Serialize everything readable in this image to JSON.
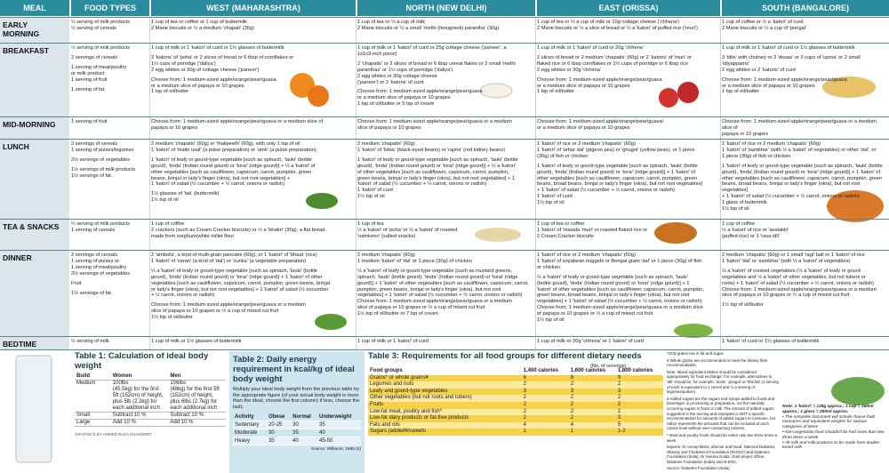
{
  "header": {
    "meal": "MEAL",
    "food_types": "FOOD TYPES",
    "regions": [
      "WEST (MAHARASHTRA)",
      "NORTH (NEW DELHI)",
      "EAST (ORISSA)",
      "SOUTH (BANGALORE)"
    ]
  },
  "rows": [
    {
      "meal": "EARLY\nMORNING",
      "food": [
        "¼ serving of milk products\n½ serving of cereals"
      ],
      "west": [
        "1 cup of tea or coffee or 1 cup of buttermilk\n2 Marie biscuits or ½ a medium 'chapati' (35g)"
      ],
      "north": [
        "1 cup of tea or ½ a cup of milk\n2 Marie biscuits or ½ a small 'methi (fenugreek) parantha' (30g)"
      ],
      "east": [
        "1 cup of tea or ½ a cup of milk or 10g cottage cheese ('chhena')\n2 Marie biscuits or ½ a slice of bread or ½ a 'katori' of puffed rice ('muri')"
      ],
      "south": [
        "1 cup of coffee or ½ a 'katori' of curd\n2 Marie biscuits or ½ a cup of 'pongal'"
      ]
    },
    {
      "meal": "BREAKFAST",
      "food": [
        "½ serving of milk products",
        "2 servings of cereals",
        "1 serving of meat/poultry\nor milk product\n1 serving of fruit",
        "1 serving of fat"
      ],
      "west": [
        "1 cup of milk or 1 'katori' of curd or 1½ glasses of buttermilk",
        "2 'katoris' of 'poha' or 2 slices of bread or 6 tbsp of cornflakes or\n1½ cups of porridge ('daliya')\n2 egg whites or 30g of cottage cheese ('paneer')",
        "Choose from: 1 medium-sized apple/orange/pear/guava\nor a medium slice of papaya or 10 grapes\n1 tsp of oil/butter"
      ],
      "north": [
        "1 cup of milk or 1 'katori' of curd or 25g cottage cheese ('paneer', a\n1x1x3-inch piece)",
        "2 'chapatis' or 2 slices of bread or 6 tbsp cereal flakes or 2 small 'methi\nparanthas' or 1½ cups of porridge ('daliya')\n2 egg whites or 30g cottage cheese\n('paneer') or 2 'katoris' of curd",
        "Choose from: 1 medium-sized apple/orange/pear/guava\nor a medium slice of papaya or 10 grapes\n1 tsp of oil/butter or 5 tsp of cream"
      ],
      "east": [
        "1 cup of milk or 1 'katori' of curd or 20g 'chhena'",
        "2 slices of bread or 2 medium 'chapatis' (60g) or 2 'katoris' of 'muri' or\nflaked rice or 6 tbsp cornflakes or 1½ cups of porridge or 6 tbsp rice\n2 egg whites or 30g 'chhena'",
        "Choose from: 1 medium-sized apple/orange/pear/guava\nor a medium slice of papaya or 10 grapes\n1 tsp of oil/butter"
      ],
      "south": [
        "1 cup of milk or 1 'katori' of curd or 1½ glasses of buttermilk",
        "3 'idlis' with chutney or 2 'dosas' or 2 cups of 'upma' or 2 small\n'idiyappams'\n2 egg whites or 2 'katoris' of curd",
        "Choose from: 1 medium-sized apple/orange/pear/guava\nor a medium slice of papaya or 10 grapes\n1 tsp of oil/butter"
      ]
    },
    {
      "meal": "MID-MORNING",
      "food": [
        "1 serving of fruit"
      ],
      "west": [
        "Choose from: 1 medium-sized apple/orange/pear/guava or a medium slice of\npapaya or 10 grapes"
      ],
      "north": [
        "Choose from: 1 medium-sized apple/orange/pear/guava or a medium\nslice of papaya or 10 grapes"
      ],
      "east": [
        "Choose from: 1 medium-sized apple/orange/pear/guava/\nor a medium slice of papaya or 10 grapes"
      ],
      "south": [
        "Choose from: 1 medium-sized apple/orange/pear/guava or a medium slice of\npapaya or 10 grapes"
      ]
    },
    {
      "meal": "LUNCH",
      "food": [
        "2 servings of cereals\n1 serving of pulses/legumes",
        "2½ servings of vegetables",
        "1½ servings of milk products\n1½ servings of fat"
      ],
      "west": [
        "2 medium 'chapatis' (60g) or 'thalipeeth' (60g), with only 1 tsp of oil\n1 'katori' of 'matki usal' (a pulse preparation) or 'amti' (a pulse preparation)",
        "1 'katori' of leafy or gourd-type vegetable [such as spinach, 'lauki' (bottle\ngourd), 'tinda' (Indian round gourd) or 'torai' (ridge gourd)] + ½ a 'katori' of\nother vegetables [such as cauliflower, capsicum, carrot, pumpkin, green\nbeans, brinjal or lady's finger (okra), but not root vegetables] +\n1 'katori' of salad (½ cucumber + ½ carrot, onions or radish)",
        "1½ glasses of 'tak' (buttermilk)\n1½ tsp of oil"
      ],
      "north": [
        "2 medium 'chapatis' (60g)\n1 'katori' of 'lobia' (black-eyed beans) or 'rajma' (red kidney beans)",
        "1 'katori' of leafy or gourd-type vegetable [such as spinach, 'lauki' (bottle\ngourd), 'tinda' (Indian round gourd) or 'torai' (ridge gourd)] + ½ a 'katori'\nof other vegetables [such as cauliflower, capsicum, carrot, pumpkin,\ngreen beans, brinjal or lady's finger (okra), but not root vegetables] + 1\n'katori' of salad (½ cucumber + ½ carrot, onions or radish)\n1 'katori' of curd\n1½ tsp of oil"
      ],
      "east": [
        "1 'katori' of rice or 2 medium 'chapatis' (60g)\n1 'katori' of 'arhar dal' (pigeon pea) or 'ghugni' (yellow peas), or 1 piece\n(30g) of fish or chicken",
        "1 'katori' of leafy or gourd-type vegetable [such as spinach, 'lauki' (bottle\ngourd), 'tinda' (Indian round gourd) or 'torai' (ridge gourd)] + 1 'katori' of\nother vegetables [such as cauliflower, capsicum, carrot, pumpkin, green\nbeans, broad beans, brinjal or lady's finger (okra), but not root vegetables]\n+ 1 'katori' of salad (½ cucumber + ½ carrot, onions or radish)\n1 'katori' of curd\n1½ tsp of oil"
      ],
      "south": [
        "1 'katori' of rice or 2 medium 'chapatis' (60g)\n1 'katori' of 'sambhar' (with ½ a 'katori' of vegetables) or other 'dal', or\n1 piece (30g) of fish or chicken",
        "1 'katori' of leafy or gourd-type vegetable [such as spinach, 'lauki' (bottle\ngourd), 'tinda' (Indian round gourd) or 'torai' (ridge gourd)] + 1 'katori' of\nother vegetables [such as cauliflower, capsicum, carrot, pumpkin, green\nbeans, broad beans, brinjal or lady's finger (okra), but not root vegetables]\n+ 1 'katori' of salad (½ cucumber + ½ carrot, onions or radish)\n1 glass of buttermilk\n1½ tsp of oil"
      ]
    },
    {
      "meal": "TEA & SNACKS",
      "food": [
        "¼ serving of milk products\n1 serving of cereals"
      ],
      "west": [
        "1 cup of coffee\n2 crackers (such as Cream Cracker biscuits) or ½ a 'bhakri' (30g), a flat bread\nmade from sorghum/white millet flour"
      ],
      "north": [
        "1 cup of tea\n½ a 'katori' of 'poha' or ½ a 'katori' of roasted\n'namkeen' (salted snacks)"
      ],
      "east": [
        "1 cup of tea or coffee\n1 'katori' of 'masala 'muri' or roasted flaked rice or\n2 Cream Cracker biscuits"
      ],
      "south": [
        "1 cup of coffee\n½ a 'katori' of rice or 'avalakki'\n(puffed rice) or 1 'rava idli'"
      ]
    },
    {
      "meal": "DINNER",
      "food": [
        "2 servings of cereals\n1 serving of pulses or\n1 serving of meat/poultry\n2½ servings of vegetables",
        "Fruit",
        "1½ servings of fat"
      ],
      "west": [
        "2 'ambolis', a kind of multi-grain pancake (60g), or 1 'katori' of 'bhaat' (rice)\n1 'katori' of 'varan' (a kind of 'dal') or 'zunka' (a vegetable preparation)",
        "½ a 'katori' of leafy or gourd-type vegetable [such as spinach, 'lauki' (bottle\ngourd), 'tinda' (Indian round gourd) or 'torai' (ridge gourd)] + 1 'katori' of other\nvegetables [such as cauliflower, capsicum, carrot, pumpkin, green beans, brinjal\nor lady's finger (okra), but not root vegetables] + 1 'katori' of salad (½ cucumber\n+ ½ carrot, onions or radish)",
        "Choose from: 1 medium-sized apple/orange/pear/guava or a medium\nslice of papaya or 10 grapes or ½ a cup of mixed cut fruit\n1½ tsp of oil/butter"
      ],
      "north": [
        "2 medium 'chapatis' (60g)\n1 medium 'katori' of 'dal' or 1 piece (30g) of chicken",
        "½ a 'katori' of leafy or gourd-type vegetable [such as mustard greens,\nspinach, 'lauki' (bottle gourd), 'tinda' (Indian round gourd) or 'torai' (ridge\ngourd)] + 1 'katori' of other vegetables [such as cauliflower, capsicum, carrot,\npumpkin, green beans, brinjal or lady's finger (okra), but not root\nvegetables] + 1 'katori' of salad (½ cucumber + ½ carrot, onions or radish)\nChoose from: 1 medium-sized apple/orange/pear/guava or a medium\nslice of papaya or 10 grapes or ½ a cup of mixed cut fruit\n1½ tsp of oil/butter or 7 tsp of cream"
      ],
      "east": [
        "1 'katori' of rice or 2 medium 'chapatis' (60g)\n1 'katori' of soyabean nuggets or Bengal gram 'dal' or 1 piece (30g) of fish\nor chicken",
        "½ a 'katori' of leafy or gourd-type vegetable [such as spinach, 'lauki'\n(bottle gourd), 'tinda' (Indian round gourd) or 'torai' (ridge gourd)] + 1\n'katori' of other vegetables [such as cauliflower, capsicum, carrot, pumpkin,\ngreen beans, broad beans, brinjal or lady's finger (okra), but not root\nvegetables] + 1 'katori' of salad (½ cucumber + ½ carrot, onions or radish)\nChoose from: 1 medium-sized apple/orange/pear/guava or a medium slice\nof papaya or 10 grapes or ½ a cup of mixed cut fruit\n1½ tsp of oil"
      ],
      "south": [
        "2 medium 'chapatis' (60g) or 1 small 'ragi' ball or 1 'katori' of rice\n1 'katori' 'dal' or 'sambhar' (with ½ a 'katori' of vegetables)",
        "½ a 'katori' of cooked vegetables (½ a 'katori' of leafy or gourd\nvegetables and ½ a 'katori' of other vegetables, but not tubers or\nroots) + 1 'katori' of salad (½ cucumber + ½ carrot, onions or radish)\nChoose from: 1 medium-sized apple/orange/pear/guava or a medium\nslice of papaya or 10 grapes or ½ a cup of mixed cut fruit",
        "1½ tsp of oil/butter"
      ]
    },
    {
      "meal": "BEDTIME",
      "food": [
        "½ serving of milk"
      ],
      "west": [
        "1 cup of milk or 1½ glasses of buttermilk"
      ],
      "north": [
        "1 cup of milk or 1 'katori' of curd"
      ],
      "east": [
        "1 cup of milk or 20g 'chhena' or 1 'katori' of curd"
      ],
      "south": [
        "1 'katori' of curd or 1½ glasses of buttermilk"
      ]
    }
  ],
  "table1": {
    "title": "Table 1: Calculation of ideal body weight",
    "columns": [
      "Build",
      "Women",
      "Men"
    ],
    "rows": [
      [
        "Medium",
        "100lbs\n(45.5kg) for the first\n5ft (152cm) of height,\nplus 5lb (2.3kg) for\neach additional inch",
        "106lbs\n(48kg) for the first 5ft\n(152cm) of height,\nplus 6lbs (2.7kg) for\neach additional inch"
      ],
      [
        "Small",
        "Subtract 10 %",
        "Subtract 10 %"
      ],
      [
        "Large",
        "Add 10 %",
        "Add 10 %"
      ]
    ],
    "credit": "GRAPHICS BY AHMED RAZA KHAN/MINT"
  },
  "table2": {
    "title": "Table 2: Daily energy requirement in kcal/kg of ideal body weight",
    "intro": "Multiply your ideal body weight from the previous table by the appropriate figure (of your actual body weight is more than the ideal, choose the first column) if less, choose the last).",
    "columns": [
      "Activity",
      "Obese",
      "Normal",
      "Underweight"
    ],
    "rows": [
      [
        "Sedentary",
        "20-25",
        30,
        35
      ],
      [
        "Moderate",
        30,
        35,
        40
      ],
      [
        "Heavy",
        35,
        40,
        "45-50"
      ]
    ],
    "source": "Source: Williams, 1988 (4)"
  },
  "table3": {
    "title": "Table 3: Requirements for all food groups for different dietary needs",
    "subheader": "(No. of servings)",
    "columns": [
      "Food groups",
      "1,400 calories",
      "1,600 calories",
      "1,800 calories"
    ],
    "rows": [
      [
        "Grains* or whole grains¥",
        6,
        8,
        9
      ],
      [
        "Legumes and nuts",
        2,
        2,
        2
      ],
      [
        "Leafy and gourd-type vegetables",
        3,
        3,
        3
      ],
      [
        "Other vegetables (but not roots and tubers)",
        2,
        2,
        2
      ],
      [
        "Fruits",
        2,
        2,
        2
      ],
      [
        "Low-fat meat, poultry and fish*",
        2,
        2,
        2
      ],
      [
        "Low-fat dairy products or fat-free products",
        2,
        2,
        3
      ],
      [
        "Fats and oils",
        4,
        4,
        5
      ],
      [
        "Sugars (added¥/sweets",
        1,
        1,
        "1-2"
      ]
    ]
  },
  "notes": [
    "*Only grains low in fat and sugar.",
    "¥ Whole grains are recommended to meet the dietary fibre recommendation.",
    "Note: Mixed ingredient dishes should be considered appropriately for food exchange: For example, alternatives to 'idli' should be, for example, 'dosa', 'pongal' or 'khichdi' (1 serving of each is equivalent to 1 cereal and ½ a serving of legumes/pulses).",
    "¥ Added sugars are the sugars and syrups added to foods and beverages in processing or preparation, not the naturally occurring sugars in fruits or milk. The amount of added sugars suggested in the serving and examples is NOT a specific recommendation for amounts of added sugars to consume, but rather represents the amounts that can be included at each calorie level without over-consuming calories.",
    "* Meat and poultry foods should be eaten only two-three times a week.",
    "Experts: Dr Anoop Misra, director and head, National Diabetes, Obesity and Cholesterol Foundation (N-DOC) and Diabetes Foundation (India); Dr Seema Gulati, chief project officer, Diabetes Foundation (India) and N-DOC.",
    "Source: Diabetes Foundation (India)"
  ],
  "side_note": [
    "Note: 1 'katori' = 125g approx.; 1 cup = 150ml approx.; 1 glass = 250ml approx.",
    "• The complete document will include house-hold measures and equivalent weights for various categories of items",
    "• Non-vegetarian food shouldn't be had more than two-three times a week",
    "• All milk and milk products to be made from double-toned milk"
  ]
}
